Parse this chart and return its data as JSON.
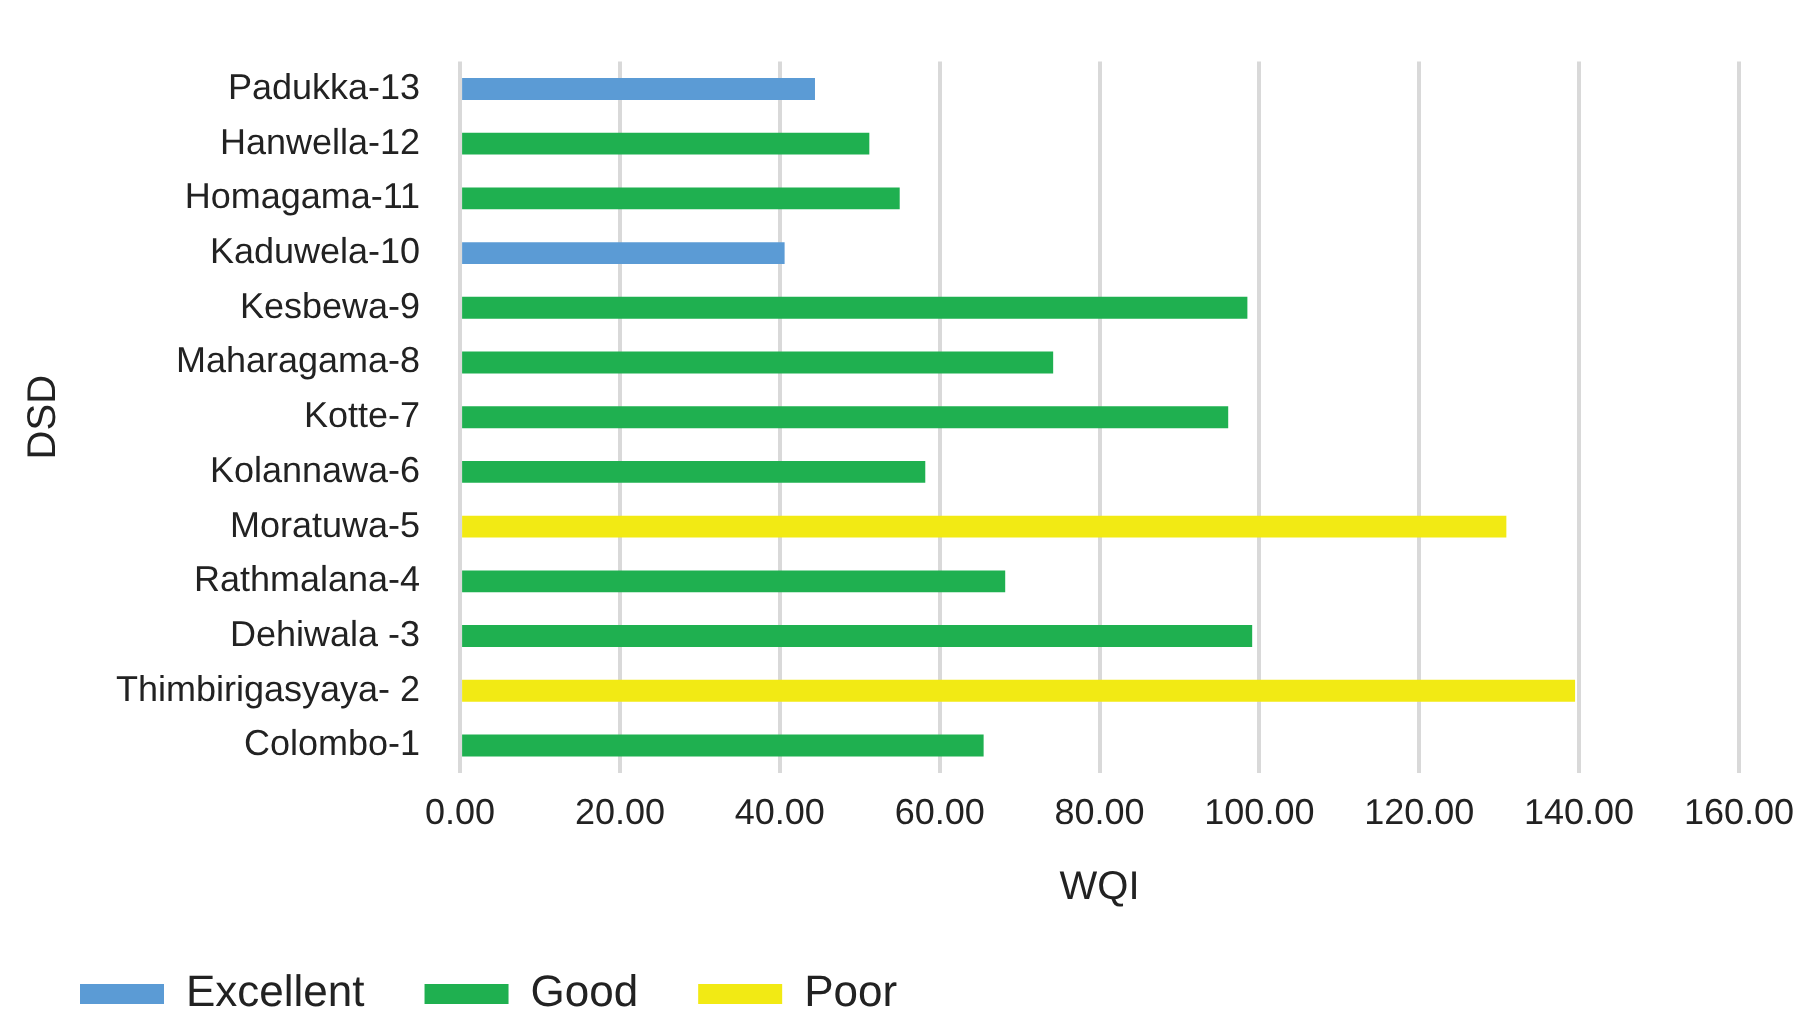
{
  "chart_data": {
    "type": "bar",
    "orientation": "horizontal",
    "stacked": true,
    "xlabel": "WQI",
    "ylabel": "DSD",
    "categories": [
      "Padukka-13",
      "Hanwella-12",
      "Homagama-11",
      "Kaduwela-10",
      "Kesbewa-9",
      "Maharagama-8",
      "Kotte-7",
      "Kolannawa-6",
      "Moratuwa-5",
      "Rathmalana-4",
      "Dehiwala -3",
      "Thimbirigasyaya- 2",
      "Colombo-1"
    ],
    "series": [
      {
        "name": "Excellent",
        "color": "#5b9bd5",
        "values": [
          44.4,
          null,
          null,
          40.6,
          null,
          null,
          null,
          null,
          null,
          null,
          null,
          null,
          null
        ]
      },
      {
        "name": "Good",
        "color": "#1fb050",
        "values": [
          null,
          51.2,
          55.0,
          null,
          98.5,
          74.2,
          96.1,
          58.2,
          null,
          68.2,
          99.1,
          null,
          65.5
        ]
      },
      {
        "name": "Poor",
        "color": "#f2ea14",
        "values": [
          null,
          null,
          null,
          null,
          null,
          null,
          null,
          null,
          130.9,
          null,
          null,
          139.5,
          null
        ]
      }
    ],
    "xlim": [
      0,
      160
    ],
    "xticks": [
      {
        "value": 0,
        "label": "0.00"
      },
      {
        "value": 20,
        "label": "20.00"
      },
      {
        "value": 40,
        "label": "40.00"
      },
      {
        "value": 60,
        "label": "60.00"
      },
      {
        "value": 80,
        "label": "80.00"
      },
      {
        "value": 100,
        "label": "100.00"
      },
      {
        "value": 120,
        "label": "120.00"
      },
      {
        "value": 140,
        "label": "140.00"
      },
      {
        "value": 160,
        "label": "160.00"
      }
    ],
    "grid": "x",
    "legend": "bottom left"
  }
}
